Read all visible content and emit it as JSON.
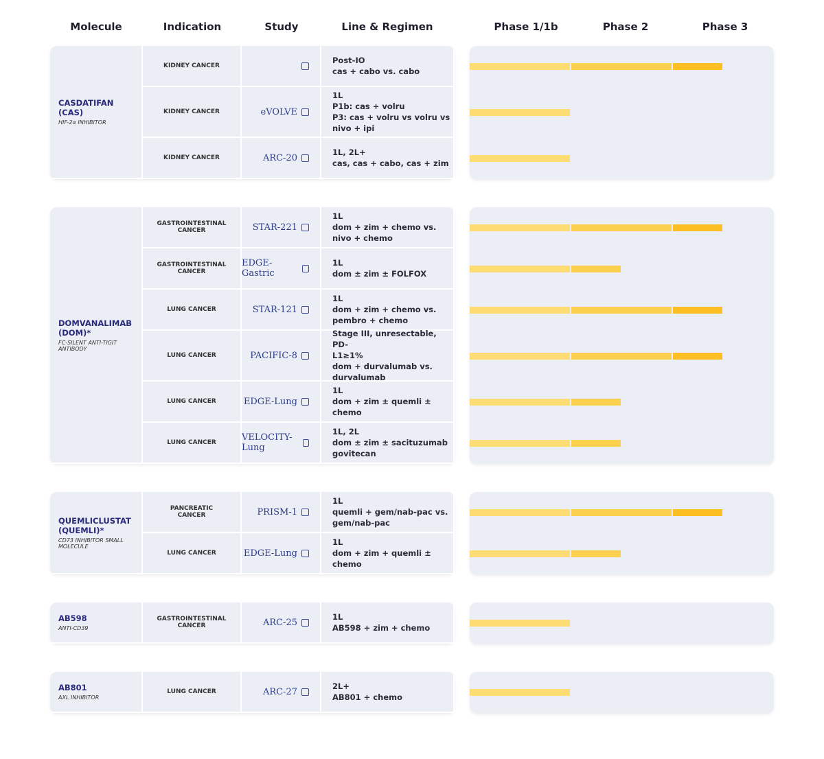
{
  "header": {
    "columns": [
      "Molecule",
      "Indication",
      "Study",
      "Line & Regimen",
      "Phase 1/1b",
      "Phase 2",
      "Phase 3"
    ]
  },
  "groups": [
    {
      "name": "CASDATIFAN (CAS)",
      "subtitle": "HIF-2α INHIBITOR",
      "rows": [
        {
          "indication": "KIDNEY CANCER",
          "regimen": [
            "Post-IO",
            "cas + cabo vs. cabo"
          ],
          "progress": 2.5
        },
        {
          "indication": "KIDNEY CANCER",
          "study": "eVOLVE",
          "regimen": [
            "1L",
            "P1b: cas + volru",
            "P3: cas + volru vs volru vs",
            "nivo + ipi"
          ],
          "progress": 1
        },
        {
          "indication": "KIDNEY CANCER",
          "study": "ARC-20",
          "regimen": [
            "1L, 2L+",
            "cas, cas + cabo, cas + zim"
          ],
          "progress": 1
        }
      ]
    },
    {
      "name": "DOMVANALIMAB (DOM)*",
      "subtitle": "FC-SILENT ANTI-TIGIT ANTIBODY",
      "rows": [
        {
          "indication": "GASTROINTESTINAL CANCER",
          "study": "STAR-221",
          "regimen": [
            "1L",
            "dom + zim + chemo vs.",
            "nivo + chemo"
          ],
          "progress": 2.5
        },
        {
          "indication": "GASTROINTESTINAL CANCER",
          "study": "EDGE-Gastric",
          "regimen": [
            "1L",
            "dom ± zim ± FOLFOX"
          ],
          "progress": 1.5
        },
        {
          "indication": "LUNG CANCER",
          "study": "STAR-121",
          "regimen": [
            "1L",
            "dom + zim + chemo vs.",
            "pembro + chemo"
          ],
          "progress": 2.5
        },
        {
          "indication": "LUNG CANCER",
          "study": "PACIFIC-8",
          "regimen": [
            "Stage III, unresectable, PD-",
            "L1≥1%",
            "dom + durvalumab vs.",
            "durvalumab"
          ],
          "progress": 2.5
        },
        {
          "indication": "LUNG CANCER",
          "study": "EDGE-Lung",
          "regimen": [
            "1L",
            "dom + zim ± quemli ± chemo"
          ],
          "progress": 1.5
        },
        {
          "indication": "LUNG CANCER",
          "study": "VELOCITY-Lung",
          "regimen": [
            "1L, 2L",
            "dom ± zim ± sacituzumab",
            "govitecan"
          ],
          "progress": 1.5
        }
      ]
    },
    {
      "name": "QUEMLICLUSTAT (QUEMLI)*",
      "subtitle": "CD73 INHIBITOR SMALL MOLECULE",
      "rows": [
        {
          "indication": "PANCREATIC CANCER",
          "study": "PRISM-1",
          "regimen": [
            "1L",
            "quemli + gem/nab-pac vs.",
            "gem/nab-pac"
          ],
          "progress": 2.5
        },
        {
          "indication": "LUNG CANCER",
          "study": "EDGE-Lung",
          "regimen": [
            "1L",
            "dom + zim + quemli ± chemo"
          ],
          "progress": 1.5
        }
      ]
    },
    {
      "name": "AB598",
      "subtitle": "ANTI-CD39",
      "rows": [
        {
          "indication": "GASTROINTESTINAL CANCER",
          "study": "ARC-25",
          "regimen": [
            "1L",
            "AB598 + zim + chemo"
          ],
          "progress": 1
        }
      ]
    },
    {
      "name": "AB801",
      "subtitle": "AXL INHIBITOR",
      "rows": [
        {
          "indication": "LUNG CANCER",
          "study": "ARC-27",
          "regimen": [
            "2L+",
            "AB801 + chemo"
          ],
          "progress": 1
        }
      ]
    }
  ]
}
